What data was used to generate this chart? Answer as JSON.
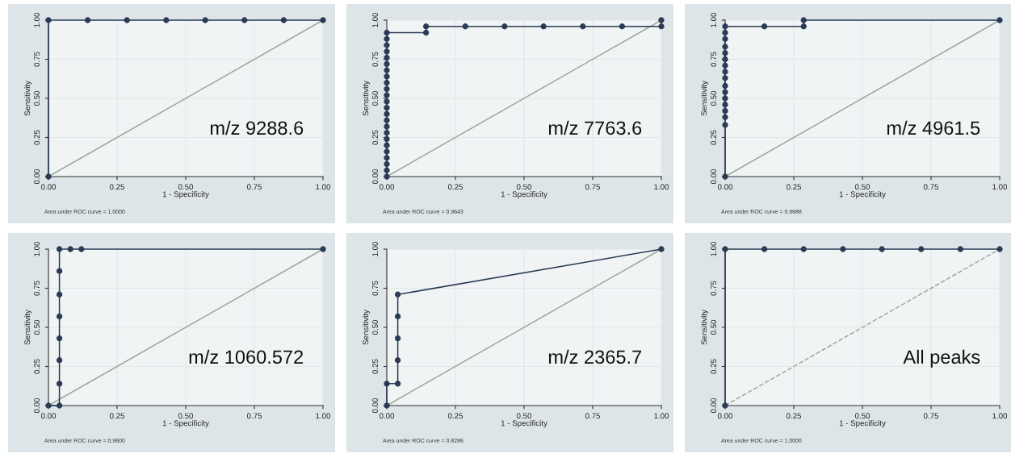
{
  "chart_data": [
    {
      "type": "line",
      "xlabel": "1 - Specificity",
      "ylabel": "Sensitivity",
      "xlim": [
        0,
        1
      ],
      "ylim": [
        0,
        1
      ],
      "xticks": [
        {
          "value": 0,
          "label": "0.00"
        },
        {
          "value": 0.25,
          "label": "0.25"
        },
        {
          "value": 0.5,
          "label": "0.50"
        },
        {
          "value": 0.75,
          "label": "0.75"
        },
        {
          "value": 1,
          "label": "1.00"
        }
      ],
      "yticks": [
        {
          "value": 0,
          "label": "0.00"
        },
        {
          "value": 0.25,
          "label": "0.25"
        },
        {
          "value": 0.5,
          "label": "0.50"
        },
        {
          "value": 0.75,
          "label": "0.75"
        },
        {
          "value": 1,
          "label": "1.00"
        }
      ],
      "grid": true,
      "annotations": [
        "m/z 9288.6",
        "Area under ROC curve = 1.0000"
      ],
      "series": [
        {
          "color": "#2a3b55",
          "marker": "circle",
          "line_style": "solid",
          "x": [
            0,
            0,
            0.143,
            0.286,
            0.429,
            0.571,
            0.714,
            0.857,
            1
          ],
          "values": [
            0,
            1,
            1,
            1,
            1,
            1,
            1,
            1,
            1
          ]
        },
        {
          "color": "#9aaa9e",
          "marker": "none",
          "line_style": "solid",
          "x": [
            0,
            1
          ],
          "values": [
            0,
            1
          ]
        }
      ]
    },
    {
      "type": "line",
      "xlabel": "1 - Specificity",
      "ylabel": "Sensitivity",
      "xlim": [
        0,
        1
      ],
      "ylim": [
        0,
        1
      ],
      "xticks": [
        {
          "value": 0,
          "label": "0.00"
        },
        {
          "value": 0.25,
          "label": "0.25"
        },
        {
          "value": 0.5,
          "label": "0.50"
        },
        {
          "value": 0.75,
          "label": "0.75"
        },
        {
          "value": 1,
          "label": "1.00"
        }
      ],
      "yticks": [
        {
          "value": 0,
          "label": "0.00"
        },
        {
          "value": 0.25,
          "label": "0.25"
        },
        {
          "value": 0.5,
          "label": "0.50"
        },
        {
          "value": 0.75,
          "label": "0.75"
        },
        {
          "value": 1,
          "label": "1.00"
        }
      ],
      "grid": true,
      "annotations": [
        "m/z 7763.6",
        "Area under ROC curve = 0.9643"
      ],
      "series": [
        {
          "color": "#2a3b55",
          "marker": "circle",
          "line_style": "solid",
          "x": [
            0,
            0,
            0,
            0,
            0,
            0,
            0,
            0,
            0,
            0,
            0,
            0,
            0,
            0,
            0,
            0,
            0,
            0,
            0,
            0,
            0,
            0,
            0,
            0,
            0.143,
            0.143,
            0.286,
            0.429,
            0.571,
            0.714,
            0.857,
            1,
            1
          ],
          "values": [
            0,
            0.04,
            0.08,
            0.12,
            0.16,
            0.2,
            0.24,
            0.28,
            0.32,
            0.36,
            0.4,
            0.44,
            0.48,
            0.52,
            0.56,
            0.6,
            0.64,
            0.68,
            0.72,
            0.76,
            0.8,
            0.84,
            0.88,
            0.92,
            0.92,
            0.96,
            0.96,
            0.96,
            0.96,
            0.96,
            0.96,
            0.96,
            1
          ]
        },
        {
          "color": "#9aaa9e",
          "marker": "none",
          "line_style": "solid",
          "x": [
            0,
            1
          ],
          "values": [
            0,
            1
          ]
        }
      ]
    },
    {
      "type": "line",
      "xlabel": "1 - Specificity",
      "ylabel": "Sensitivity",
      "xlim": [
        0,
        1
      ],
      "ylim": [
        0,
        1
      ],
      "xticks": [
        {
          "value": 0,
          "label": "0.00"
        },
        {
          "value": 0.25,
          "label": "0.25"
        },
        {
          "value": 0.5,
          "label": "0.50"
        },
        {
          "value": 0.75,
          "label": "0.75"
        },
        {
          "value": 1,
          "label": "1.00"
        }
      ],
      "yticks": [
        {
          "value": 0,
          "label": "0.00"
        },
        {
          "value": 0.25,
          "label": "0.25"
        },
        {
          "value": 0.5,
          "label": "0.50"
        },
        {
          "value": 0.75,
          "label": "0.75"
        },
        {
          "value": 1,
          "label": "1.00"
        }
      ],
      "grid": true,
      "annotations": [
        "m/z 4961.5",
        "Area under ROC curve = 0.9688"
      ],
      "series": [
        {
          "color": "#2a3b55",
          "marker": "circle",
          "line_style": "solid",
          "x": [
            0,
            0,
            0,
            0,
            0,
            0,
            0,
            0,
            0,
            0,
            0,
            0,
            0,
            0,
            0,
            0,
            0,
            0.143,
            0.286,
            0.286,
            1
          ],
          "values": [
            0,
            0.33,
            0.38,
            0.42,
            0.46,
            0.5,
            0.54,
            0.58,
            0.63,
            0.67,
            0.71,
            0.75,
            0.79,
            0.83,
            0.88,
            0.92,
            0.96,
            0.96,
            0.96,
            1,
            1
          ]
        },
        {
          "color": "#9aaa9e",
          "marker": "none",
          "line_style": "solid",
          "x": [
            0,
            1
          ],
          "values": [
            0,
            1
          ]
        }
      ]
    },
    {
      "type": "line",
      "xlabel": "1 - Specificity",
      "ylabel": "Sensitivity",
      "xlim": [
        0,
        1
      ],
      "ylim": [
        0,
        1
      ],
      "xticks": [
        {
          "value": 0,
          "label": "0.00"
        },
        {
          "value": 0.25,
          "label": "0.25"
        },
        {
          "value": 0.5,
          "label": "0.50"
        },
        {
          "value": 0.75,
          "label": "0.75"
        },
        {
          "value": 1,
          "label": "1.00"
        }
      ],
      "yticks": [
        {
          "value": 0,
          "label": "0.00"
        },
        {
          "value": 0.25,
          "label": "0.25"
        },
        {
          "value": 0.5,
          "label": "0.50"
        },
        {
          "value": 0.75,
          "label": "0.75"
        },
        {
          "value": 1,
          "label": "1.00"
        }
      ],
      "grid": true,
      "annotations": [
        "m/z 1060.572",
        "Area under ROC curve = 0.9600"
      ],
      "series": [
        {
          "color": "#2a3b55",
          "marker": "circle",
          "line_style": "solid",
          "x": [
            0,
            0.04,
            0.04,
            0.04,
            0.04,
            0.04,
            0.04,
            0.04,
            0.04,
            0.08,
            0.12,
            1
          ],
          "values": [
            0,
            0,
            0.14,
            0.29,
            0.43,
            0.57,
            0.71,
            0.86,
            1,
            1,
            1,
            1
          ]
        },
        {
          "color": "#9aaa9e",
          "marker": "none",
          "line_style": "solid",
          "x": [
            0,
            1
          ],
          "values": [
            0,
            1
          ]
        }
      ]
    },
    {
      "type": "line",
      "xlabel": "1 - Specificity",
      "ylabel": "Sensitivity",
      "xlim": [
        0,
        1
      ],
      "ylim": [
        0,
        1
      ],
      "xticks": [
        {
          "value": 0,
          "label": "0.00"
        },
        {
          "value": 0.25,
          "label": "0.25"
        },
        {
          "value": 0.5,
          "label": "0.50"
        },
        {
          "value": 0.75,
          "label": "0.75"
        },
        {
          "value": 1,
          "label": "1.00"
        }
      ],
      "yticks": [
        {
          "value": 0,
          "label": "0.00"
        },
        {
          "value": 0.25,
          "label": "0.25"
        },
        {
          "value": 0.5,
          "label": "0.50"
        },
        {
          "value": 0.75,
          "label": "0.75"
        },
        {
          "value": 1,
          "label": "1.00"
        }
      ],
      "grid": true,
      "annotations": [
        "m/z 2365.7",
        "Area under ROC curve = 0.8286"
      ],
      "series": [
        {
          "color": "#2a3b55",
          "marker": "circle",
          "line_style": "solid",
          "x": [
            0,
            0,
            0.04,
            0.04,
            0.04,
            0.04,
            0.04,
            1
          ],
          "values": [
            0,
            0.14,
            0.14,
            0.29,
            0.43,
            0.57,
            0.71,
            1
          ]
        },
        {
          "color": "#9aaa9e",
          "marker": "none",
          "line_style": "solid",
          "x": [
            0,
            1
          ],
          "values": [
            0,
            1
          ]
        }
      ]
    },
    {
      "type": "line",
      "xlabel": "1 - Specificity",
      "ylabel": "Sensitivity",
      "xlim": [
        0,
        1
      ],
      "ylim": [
        0,
        1
      ],
      "xticks": [
        {
          "value": 0,
          "label": "0.00"
        },
        {
          "value": 0.25,
          "label": "0.25"
        },
        {
          "value": 0.5,
          "label": "0.50"
        },
        {
          "value": 0.75,
          "label": "0.75"
        },
        {
          "value": 1,
          "label": "1.00"
        }
      ],
      "yticks": [
        {
          "value": 0,
          "label": "0.00"
        },
        {
          "value": 0.25,
          "label": "0.25"
        },
        {
          "value": 0.5,
          "label": "0.50"
        },
        {
          "value": 0.75,
          "label": "0.75"
        },
        {
          "value": 1,
          "label": "1.00"
        }
      ],
      "grid": true,
      "annotations": [
        "All peaks",
        "Area under ROC curve = 1.0000"
      ],
      "series": [
        {
          "color": "#2a3b55",
          "marker": "circle",
          "line_style": "solid",
          "x": [
            0,
            0,
            0.143,
            0.286,
            0.429,
            0.571,
            0.714,
            0.857,
            1
          ],
          "values": [
            0,
            1,
            1,
            1,
            1,
            1,
            1,
            1,
            1
          ]
        },
        {
          "color": "#9aaa9e",
          "marker": "none",
          "line_style": "dashed",
          "x": [
            0,
            1
          ],
          "values": [
            0,
            1
          ]
        }
      ]
    }
  ]
}
